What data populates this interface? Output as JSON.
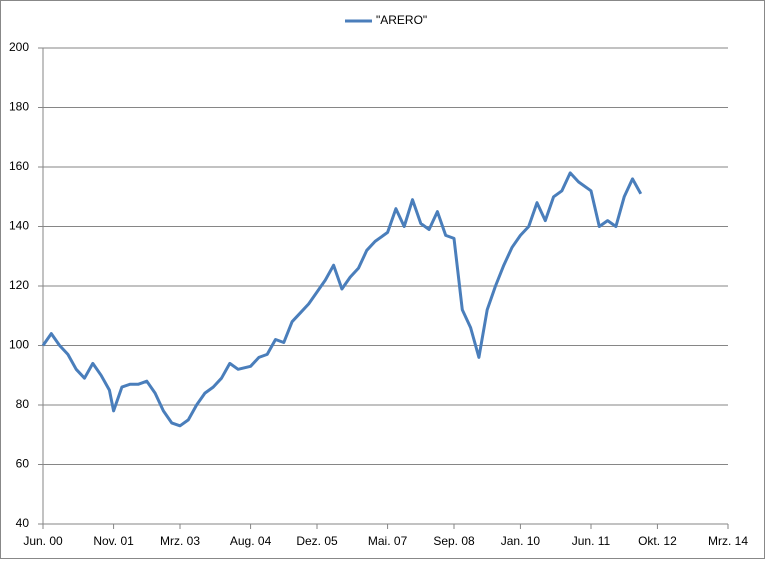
{
  "chart_data": {
    "type": "line",
    "x": [
      "2000-06",
      "2000-08",
      "2000-10",
      "2000-12",
      "2001-02",
      "2001-04",
      "2001-06",
      "2001-08",
      "2001-10",
      "2001-11",
      "2002-01",
      "2002-03",
      "2002-05",
      "2002-07",
      "2002-09",
      "2002-11",
      "2003-01",
      "2003-03",
      "2003-05",
      "2003-07",
      "2003-09",
      "2003-11",
      "2004-01",
      "2004-03",
      "2004-05",
      "2004-08",
      "2004-10",
      "2004-12",
      "2005-02",
      "2005-04",
      "2005-06",
      "2005-08",
      "2005-10",
      "2005-12",
      "2006-02",
      "2006-04",
      "2006-06",
      "2006-08",
      "2006-10",
      "2006-12",
      "2007-02",
      "2007-05",
      "2007-07",
      "2007-09",
      "2007-11",
      "2008-01",
      "2008-03",
      "2008-05",
      "2008-07",
      "2008-09",
      "2008-11",
      "2009-01",
      "2009-03",
      "2009-05",
      "2009-07",
      "2009-09",
      "2009-11",
      "2010-01",
      "2010-03",
      "2010-05",
      "2010-07",
      "2010-09",
      "2010-11",
      "2011-01",
      "2011-03",
      "2011-06",
      "2011-08",
      "2011-10",
      "2011-12",
      "2012-02",
      "2012-04",
      "2012-06"
    ],
    "series": [
      {
        "name": "\"ARERO\"",
        "color": "#4a7ebb",
        "values": [
          100,
          104,
          100,
          97,
          92,
          89,
          94,
          90,
          85,
          78,
          86,
          87,
          87,
          88,
          84,
          78,
          74,
          73,
          75,
          80,
          84,
          86,
          89,
          94,
          92,
          93,
          96,
          97,
          102,
          101,
          108,
          111,
          114,
          118,
          122,
          127,
          119,
          123,
          126,
          132,
          135,
          138,
          146,
          140,
          149,
          141,
          139,
          145,
          137,
          136,
          112,
          106,
          96,
          112,
          120,
          127,
          133,
          137,
          140,
          148,
          142,
          150,
          152,
          158,
          155,
          152,
          140,
          142,
          140,
          150,
          156,
          151
        ]
      }
    ],
    "xlim": [
      "2000-06",
      "2014-03"
    ],
    "xticks": [
      {
        "value": "2000-06",
        "label": "Jun. 00"
      },
      {
        "value": "2001-11",
        "label": "Nov. 01"
      },
      {
        "value": "2003-03",
        "label": "Mrz. 03"
      },
      {
        "value": "2004-08",
        "label": "Aug. 04"
      },
      {
        "value": "2005-12",
        "label": "Dez. 05"
      },
      {
        "value": "2007-05",
        "label": "Mai. 07"
      },
      {
        "value": "2008-09",
        "label": "Sep. 08"
      },
      {
        "value": "2010-01",
        "label": "Jan. 10"
      },
      {
        "value": "2011-06",
        "label": "Jun. 11"
      },
      {
        "value": "2012-10",
        "label": "Okt. 12"
      },
      {
        "value": "2014-03",
        "label": "Mrz. 14"
      }
    ],
    "ylim": [
      40,
      200
    ],
    "yticks": [
      40,
      60,
      80,
      100,
      120,
      140,
      160,
      180,
      200
    ],
    "grid": true,
    "legend": "top"
  }
}
